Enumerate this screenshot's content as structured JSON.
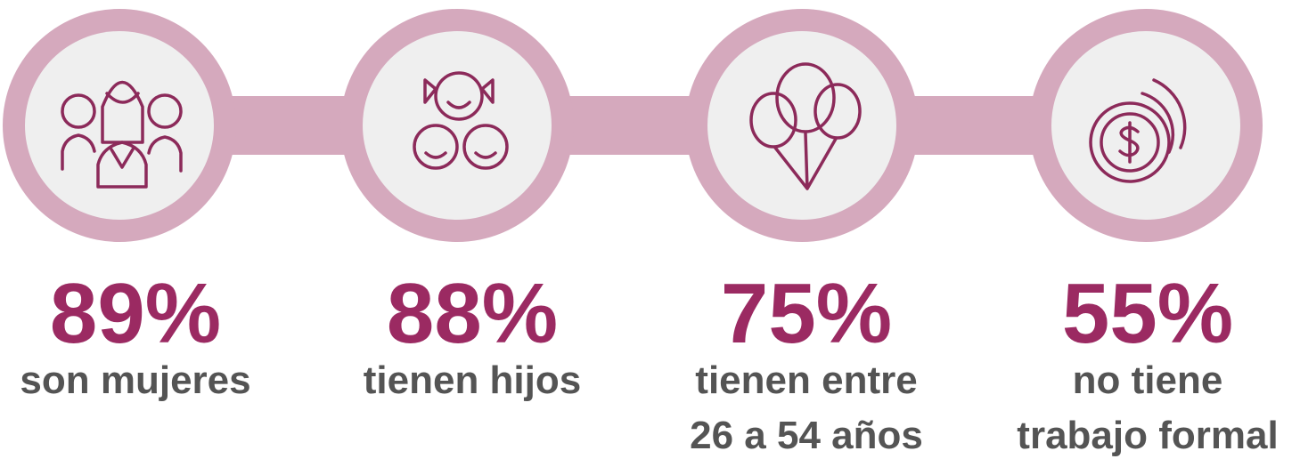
{
  "items": [
    {
      "value": "89%",
      "label": [
        "son mujeres"
      ]
    },
    {
      "value": "88%",
      "label": [
        "tienen hijos"
      ]
    },
    {
      "value": "75%",
      "label": [
        "tienen entre",
        "26 a 54 años"
      ]
    },
    {
      "value": "55%",
      "label": [
        "no tiene",
        "trabajo formal"
      ]
    }
  ]
}
